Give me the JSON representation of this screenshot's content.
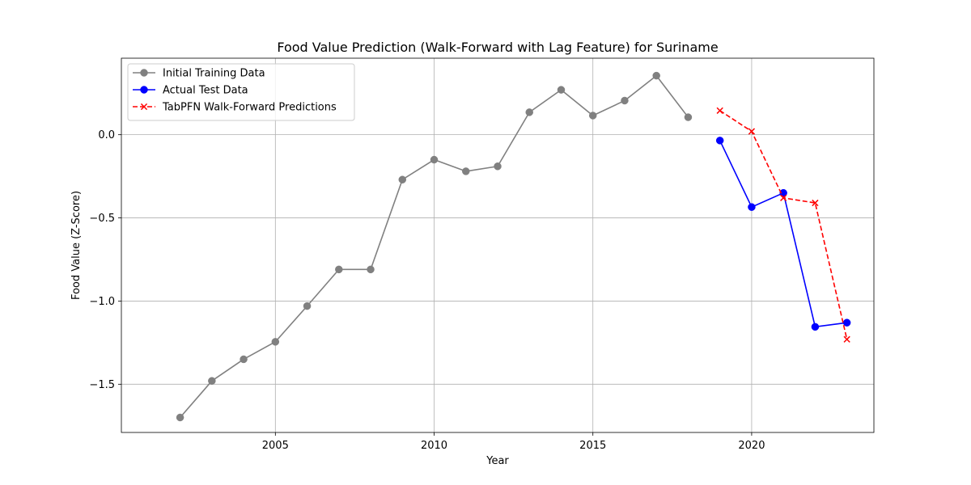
{
  "chart_data": {
    "type": "line",
    "title": "Food Value Prediction (Walk-Forward with Lag Feature) for Suriname",
    "xlabel": "Year",
    "ylabel": "Food Value (Z-Score)",
    "xlim": [
      2000.15,
      2023.85
    ],
    "ylim": [
      -1.79,
      0.46
    ],
    "xticks": [
      2005,
      2010,
      2015,
      2020
    ],
    "yticks": [
      0.0,
      -0.5,
      -1.0,
      -1.5
    ],
    "xtick_labels": [
      "2005",
      "2010",
      "2015",
      "2020"
    ],
    "ytick_labels": [
      "0.0",
      "−0.5",
      "−1.0",
      "−1.5"
    ],
    "grid": true,
    "legend_position": "top-left",
    "series": [
      {
        "name": "Initial Training Data",
        "color": "#808080",
        "marker": "circle",
        "line_style": "solid",
        "x": [
          2002,
          2003,
          2004,
          2005,
          2006,
          2007,
          2008,
          2009,
          2010,
          2011,
          2012,
          2013,
          2014,
          2015,
          2016,
          2017,
          2018
        ],
        "y": [
          -1.7,
          -1.48,
          -1.35,
          -1.245,
          -1.03,
          -0.81,
          -0.81,
          -0.27,
          -0.15,
          -0.22,
          -0.19,
          0.135,
          0.27,
          0.115,
          0.205,
          0.355,
          0.105
        ]
      },
      {
        "name": "Actual Test Data",
        "color": "#0000ff",
        "marker": "circle",
        "line_style": "solid",
        "x": [
          2019,
          2020,
          2021,
          2022,
          2023
        ],
        "y": [
          -0.035,
          -0.435,
          -0.35,
          -1.155,
          -1.13
        ]
      },
      {
        "name": "TabPFN Walk-Forward Predictions",
        "color": "#ff0000",
        "marker": "x",
        "line_style": "dashed",
        "x": [
          2019,
          2020,
          2021,
          2022,
          2023
        ],
        "y": [
          0.145,
          0.02,
          -0.38,
          -0.41,
          -1.23
        ]
      }
    ]
  }
}
